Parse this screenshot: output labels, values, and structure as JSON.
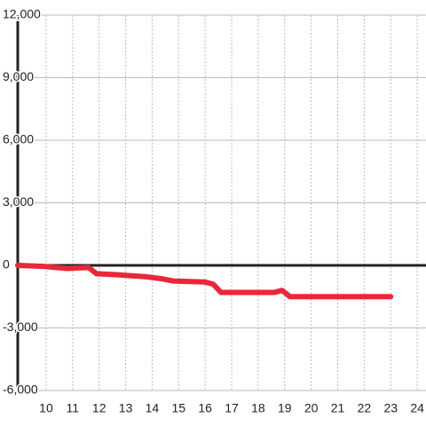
{
  "chart_data": {
    "type": "line",
    "x": [
      8.93,
      9.9,
      10.8,
      11.6,
      11.9,
      12.7,
      13.8,
      14.4,
      14.8,
      16,
      16.3,
      16.6,
      18.6,
      18.9,
      19.2,
      23
    ],
    "series": [
      {
        "color": "#e8283a",
        "values": [
          0,
          -50,
          -150,
          -100,
          -400,
          -450,
          -550,
          -650,
          -750,
          -800,
          -900,
          -1300,
          -1300,
          -1200,
          -1500,
          -1500
        ]
      }
    ],
    "xlim": [
      8.93,
      24.33
    ],
    "xticks": [
      10,
      11,
      12,
      13,
      14,
      15,
      16,
      17,
      18,
      19,
      20,
      21,
      22,
      23,
      24
    ],
    "ylim": [
      -6000,
      12000
    ],
    "yticks": [
      {
        "value": -6000,
        "label": "-6,000"
      },
      {
        "value": -3000,
        "label": "-3,000"
      },
      0,
      {
        "value": 3000,
        "label": "3,000"
      },
      {
        "value": 6000,
        "label": "6,000"
      },
      {
        "value": 9000,
        "label": "9,000"
      },
      {
        "value": 12000,
        "label": "12,000"
      }
    ],
    "grid": true
  }
}
